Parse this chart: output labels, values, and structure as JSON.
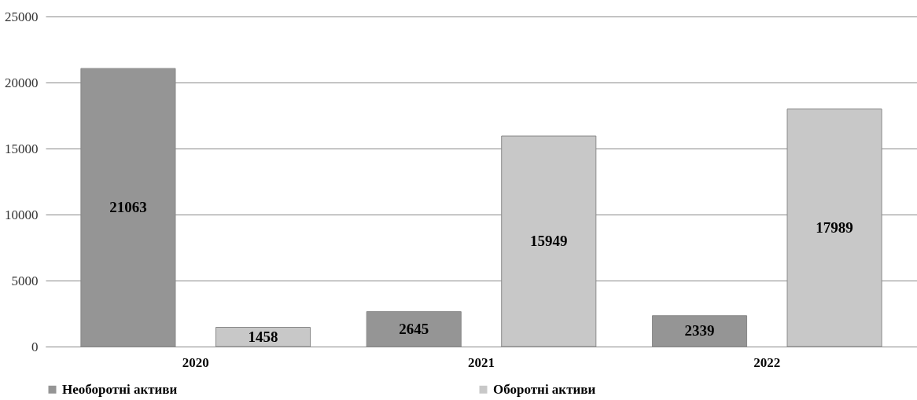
{
  "chart_data": {
    "type": "bar",
    "categories": [
      "2020",
      "2021",
      "2022"
    ],
    "series": [
      {
        "name": "Необоротні активи",
        "color": "#959595",
        "values": [
          21063,
          2645,
          2339
        ]
      },
      {
        "name": "Оборотні активи",
        "color": "#c8c8c8",
        "values": [
          1458,
          15949,
          17989
        ]
      }
    ],
    "ylim": [
      0,
      25000
    ],
    "yticks": [
      0,
      5000,
      10000,
      15000,
      20000,
      25000
    ],
    "grid": "y",
    "legend": "bottom",
    "data_labels": true
  }
}
